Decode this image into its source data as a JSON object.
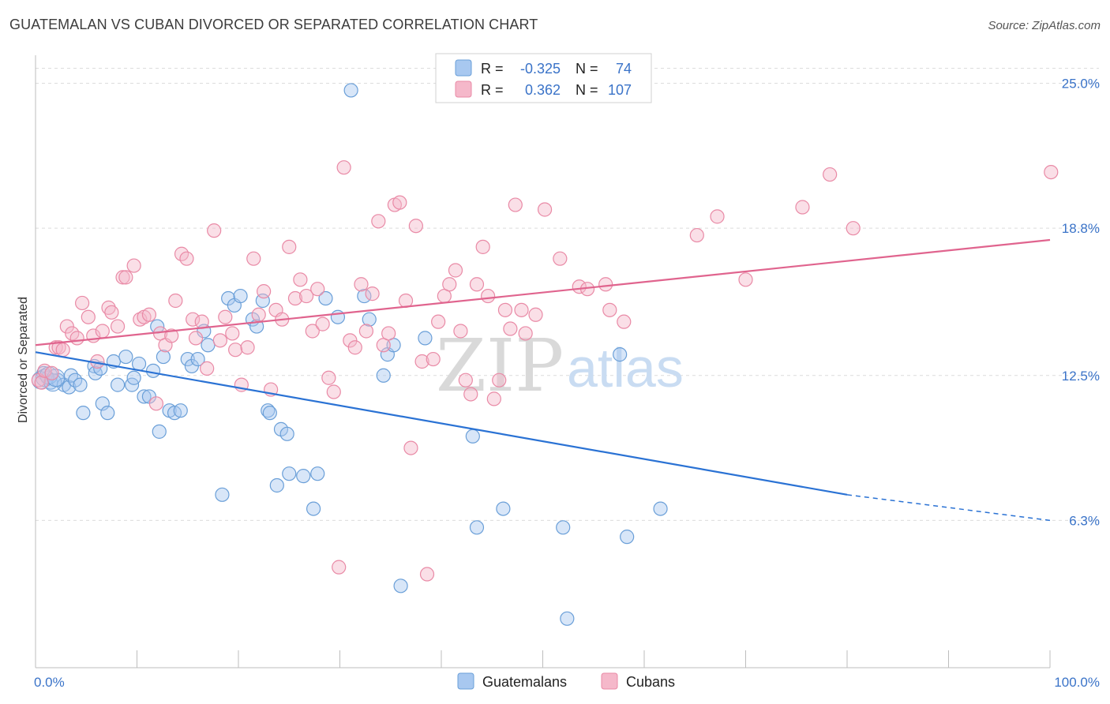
{
  "title": "GUATEMALAN VS CUBAN DIVORCED OR SEPARATED CORRELATION CHART",
  "source": "Source: ZipAtlas.com",
  "watermark": {
    "zip": "ZIP",
    "atlas": "atlas"
  },
  "legend_box": {
    "rows": [
      {
        "r_label": "R =",
        "r_value": "-0.325",
        "n_label": "N =",
        "n_value": "74",
        "color": "#a8c8f0"
      },
      {
        "r_label": "R =",
        "r_value": "0.362",
        "n_label": "N =",
        "n_value": "107",
        "color": "#f5b8ca"
      }
    ]
  },
  "bottom_legend": [
    "Guatemalans",
    "Cubans"
  ],
  "colors": {
    "blue_fill": "#a8c8f0",
    "blue_stroke": "#6a9fd8",
    "blue_line": "#2a72d4",
    "pink_fill": "#f5b8ca",
    "pink_stroke": "#e98aa6",
    "pink_line": "#e0648e",
    "grid": "#dcdcdc",
    "tick_text": "#3a73c8"
  },
  "chart_data": {
    "type": "scatter",
    "title": "GUATEMALAN VS CUBAN DIVORCED OR SEPARATED CORRELATION CHART",
    "xlabel": "",
    "ylabel": "Divorced or Separated",
    "xlim": [
      0,
      100
    ],
    "ylim": [
      0,
      26.2
    ],
    "x_tick_labels": [
      "0.0%",
      "100.0%"
    ],
    "y_ticks": [
      6.3,
      12.5,
      18.8,
      25.0
    ],
    "y_tick_labels": [
      "6.3%",
      "12.5%",
      "18.8%",
      "25.0%"
    ],
    "grid": true,
    "legend_position": "top-center",
    "series": [
      {
        "name": "Guatemalans",
        "r": -0.325,
        "n": 74,
        "trend": {
          "x0": 0,
          "y0": 13.5,
          "x1": 80,
          "y1": 7.4,
          "dashed_to_x": 100,
          "dashed_to_y": 6.3
        },
        "points": [
          [
            0.8,
            12.6
          ],
          [
            1.2,
            12.4
          ],
          [
            1.5,
            12.2
          ],
          [
            2.2,
            12.3
          ],
          [
            2.8,
            12.1
          ],
          [
            3.3,
            12.0
          ],
          [
            3.5,
            12.5
          ],
          [
            3.9,
            12.3
          ],
          [
            4.4,
            12.1
          ],
          [
            4.7,
            10.9
          ],
          [
            5.8,
            12.9
          ],
          [
            5.9,
            12.6
          ],
          [
            6.4,
            12.8
          ],
          [
            6.6,
            11.3
          ],
          [
            7.1,
            10.9
          ],
          [
            7.7,
            13.1
          ],
          [
            8.1,
            12.1
          ],
          [
            8.9,
            13.3
          ],
          [
            9.5,
            12.1
          ],
          [
            9.7,
            12.4
          ],
          [
            10.2,
            13.0
          ],
          [
            10.7,
            11.6
          ],
          [
            11.2,
            11.6
          ],
          [
            11.6,
            12.7
          ],
          [
            12.0,
            14.6
          ],
          [
            12.2,
            10.1
          ],
          [
            12.6,
            13.3
          ],
          [
            13.2,
            11.0
          ],
          [
            13.7,
            10.9
          ],
          [
            14.3,
            11.0
          ],
          [
            15.0,
            13.2
          ],
          [
            15.4,
            12.9
          ],
          [
            16.0,
            13.2
          ],
          [
            16.6,
            14.4
          ],
          [
            17.0,
            13.8
          ],
          [
            18.4,
            7.4
          ],
          [
            19.0,
            15.8
          ],
          [
            19.6,
            15.5
          ],
          [
            20.2,
            15.9
          ],
          [
            21.4,
            14.9
          ],
          [
            21.8,
            14.6
          ],
          [
            22.4,
            15.7
          ],
          [
            22.9,
            11.0
          ],
          [
            23.1,
            10.9
          ],
          [
            23.8,
            7.8
          ],
          [
            24.2,
            10.2
          ],
          [
            24.8,
            10.0
          ],
          [
            25.0,
            8.3
          ],
          [
            26.4,
            8.2
          ],
          [
            27.4,
            6.8
          ],
          [
            27.8,
            8.3
          ],
          [
            28.6,
            15.8
          ],
          [
            29.8,
            15.0
          ],
          [
            31.1,
            24.7
          ],
          [
            32.4,
            15.9
          ],
          [
            32.9,
            14.9
          ],
          [
            34.3,
            12.5
          ],
          [
            34.7,
            13.4
          ],
          [
            35.3,
            13.8
          ],
          [
            36.0,
            3.5
          ],
          [
            38.4,
            14.1
          ],
          [
            43.1,
            9.9
          ],
          [
            43.5,
            6.0
          ],
          [
            46.1,
            6.8
          ],
          [
            52.0,
            6.0
          ],
          [
            52.4,
            2.1
          ],
          [
            57.6,
            13.4
          ],
          [
            58.3,
            5.6
          ],
          [
            61.6,
            6.8
          ]
        ],
        "cluster_points": [
          [
            0.5,
            12.3
          ],
          [
            0.9,
            12.4
          ],
          [
            1.3,
            12.5
          ],
          [
            1.7,
            12.2
          ],
          [
            2.0,
            12.4
          ]
        ]
      },
      {
        "name": "Cubans",
        "r": 0.362,
        "n": 107,
        "trend": {
          "x0": 0,
          "y0": 13.8,
          "x1": 100,
          "y1": 18.3
        },
        "points": [
          [
            0.3,
            12.3
          ],
          [
            0.6,
            12.2
          ],
          [
            0.9,
            12.7
          ],
          [
            1.6,
            12.6
          ],
          [
            2.0,
            13.7
          ],
          [
            2.3,
            13.7
          ],
          [
            2.7,
            13.6
          ],
          [
            3.1,
            14.6
          ],
          [
            3.6,
            14.3
          ],
          [
            4.1,
            14.1
          ],
          [
            4.6,
            15.6
          ],
          [
            5.2,
            15.0
          ],
          [
            5.7,
            14.2
          ],
          [
            6.1,
            13.1
          ],
          [
            6.6,
            14.4
          ],
          [
            7.2,
            15.4
          ],
          [
            7.5,
            15.2
          ],
          [
            8.1,
            14.6
          ],
          [
            8.6,
            16.7
          ],
          [
            8.9,
            16.7
          ],
          [
            9.7,
            17.2
          ],
          [
            10.3,
            14.9
          ],
          [
            10.7,
            15.0
          ],
          [
            11.2,
            15.1
          ],
          [
            11.9,
            11.3
          ],
          [
            12.3,
            14.3
          ],
          [
            12.8,
            13.8
          ],
          [
            13.4,
            14.2
          ],
          [
            13.8,
            15.7
          ],
          [
            14.4,
            17.7
          ],
          [
            14.9,
            17.5
          ],
          [
            15.5,
            14.9
          ],
          [
            15.8,
            14.1
          ],
          [
            16.4,
            14.8
          ],
          [
            16.9,
            12.8
          ],
          [
            17.6,
            18.7
          ],
          [
            18.2,
            14.0
          ],
          [
            18.7,
            15.0
          ],
          [
            19.4,
            14.3
          ],
          [
            19.7,
            13.6
          ],
          [
            20.3,
            12.1
          ],
          [
            20.9,
            13.7
          ],
          [
            21.5,
            17.5
          ],
          [
            22.0,
            15.1
          ],
          [
            22.5,
            16.1
          ],
          [
            23.2,
            11.9
          ],
          [
            23.7,
            15.3
          ],
          [
            24.3,
            14.9
          ],
          [
            25.0,
            18.0
          ],
          [
            25.6,
            15.8
          ],
          [
            26.1,
            16.6
          ],
          [
            26.7,
            15.9
          ],
          [
            27.3,
            14.4
          ],
          [
            27.8,
            16.2
          ],
          [
            28.3,
            14.7
          ],
          [
            28.9,
            12.4
          ],
          [
            29.4,
            11.8
          ],
          [
            29.9,
            4.3
          ],
          [
            30.4,
            21.4
          ],
          [
            31.0,
            14.0
          ],
          [
            31.5,
            13.7
          ],
          [
            32.1,
            16.4
          ],
          [
            32.6,
            14.4
          ],
          [
            33.2,
            16.0
          ],
          [
            33.8,
            19.1
          ],
          [
            34.3,
            13.8
          ],
          [
            34.8,
            14.3
          ],
          [
            35.4,
            19.8
          ],
          [
            35.9,
            19.9
          ],
          [
            36.5,
            15.7
          ],
          [
            37.0,
            9.4
          ],
          [
            37.5,
            18.9
          ],
          [
            38.1,
            13.1
          ],
          [
            38.6,
            4.0
          ],
          [
            39.2,
            13.2
          ],
          [
            39.7,
            14.8
          ],
          [
            40.3,
            15.9
          ],
          [
            40.8,
            16.4
          ],
          [
            41.4,
            17.0
          ],
          [
            41.9,
            14.4
          ],
          [
            42.4,
            12.3
          ],
          [
            42.9,
            11.7
          ],
          [
            43.5,
            16.4
          ],
          [
            44.1,
            18.0
          ],
          [
            44.6,
            15.9
          ],
          [
            45.2,
            11.5
          ],
          [
            45.7,
            12.3
          ],
          [
            46.3,
            15.3
          ],
          [
            46.8,
            14.5
          ],
          [
            47.3,
            19.8
          ],
          [
            47.9,
            15.3
          ],
          [
            48.3,
            14.3
          ],
          [
            49.3,
            15.1
          ],
          [
            50.2,
            19.6
          ],
          [
            51.7,
            17.5
          ],
          [
            53.6,
            16.3
          ],
          [
            54.4,
            16.2
          ],
          [
            56.2,
            16.4
          ],
          [
            56.6,
            15.3
          ],
          [
            58.0,
            14.8
          ],
          [
            65.2,
            18.5
          ],
          [
            67.2,
            19.3
          ],
          [
            70.0,
            16.6
          ],
          [
            75.6,
            19.7
          ],
          [
            78.3,
            21.1
          ],
          [
            80.6,
            18.8
          ],
          [
            100.1,
            21.2
          ]
        ]
      }
    ]
  }
}
